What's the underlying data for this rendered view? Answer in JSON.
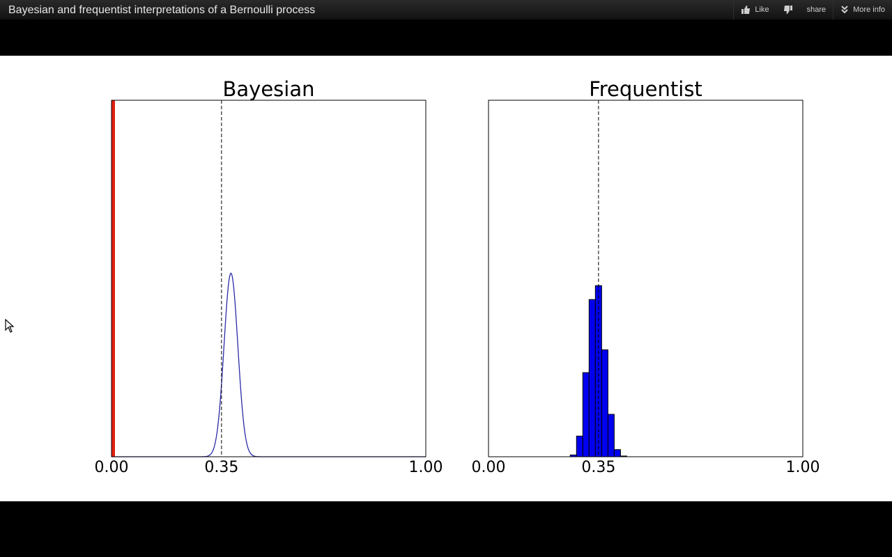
{
  "header": {
    "title": "Bayesian and frequentist interpretations of a Bernoulli process",
    "like_label": "Like",
    "share_label": "share",
    "more_info_label": "More info"
  },
  "icons": {
    "like": "thumbs-up-icon",
    "dislike": "thumbs-down-icon",
    "more_info": "double-chevron-down-icon",
    "cursor": "mouse-pointer-icon"
  },
  "chart_data": [
    {
      "type": "line",
      "title": "Bayesian",
      "xlabel": "",
      "ylabel": "",
      "xlim": [
        0,
        1
      ],
      "x_ticks": [
        "0.00",
        "0.35",
        "1.00"
      ],
      "x_tick_values": [
        0.0,
        0.35,
        1.0
      ],
      "reference_line": 0.35,
      "reference_style": "dashed",
      "grid": false,
      "legend": "none",
      "series": [
        {
          "color": "#2a2aa8",
          "distribution": "peak",
          "mean": 0.38,
          "sd": 0.022,
          "peak_relative": 0.515
        }
      ],
      "marker_bar": {
        "x": 0.0,
        "color": "#e02010"
      }
    },
    {
      "type": "bar",
      "title": "Frequentist",
      "xlabel": "",
      "ylabel": "",
      "xlim": [
        0,
        1
      ],
      "x_ticks": [
        "0.00",
        "0.35",
        "1.00"
      ],
      "x_tick_values": [
        0.0,
        0.35,
        1.0
      ],
      "reference_line": 0.35,
      "reference_style": "dashed",
      "grid": false,
      "legend": "none",
      "bin_width": 0.02,
      "bins": [
        {
          "x0": 0.26,
          "value": 0.005
        },
        {
          "x0": 0.28,
          "value": 0.058
        },
        {
          "x0": 0.3,
          "value": 0.236
        },
        {
          "x0": 0.32,
          "value": 0.441
        },
        {
          "x0": 0.34,
          "value": 0.48
        },
        {
          "x0": 0.36,
          "value": 0.3
        },
        {
          "x0": 0.38,
          "value": 0.119
        },
        {
          "x0": 0.4,
          "value": 0.02
        },
        {
          "x0": 0.42,
          "value": 0.002
        }
      ],
      "bar_color": "#0000ee"
    }
  ]
}
